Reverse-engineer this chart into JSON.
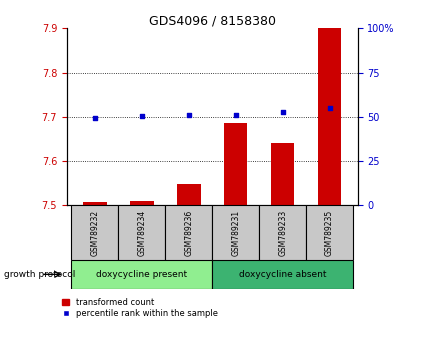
{
  "title": "GDS4096 / 8158380",
  "samples": [
    "GSM789232",
    "GSM789234",
    "GSM789236",
    "GSM789231",
    "GSM789233",
    "GSM789235"
  ],
  "red_values": [
    7.508,
    7.509,
    7.548,
    7.685,
    7.64,
    7.9
  ],
  "blue_values": [
    49.5,
    50.2,
    51.0,
    51.0,
    53.0,
    55.0
  ],
  "ylim_left": [
    7.5,
    7.9
  ],
  "ylim_right": [
    0,
    100
  ],
  "yticks_left": [
    7.5,
    7.6,
    7.7,
    7.8,
    7.9
  ],
  "yticks_right": [
    0,
    25,
    50,
    75,
    100
  ],
  "ytick_labels_right": [
    "0",
    "25",
    "50",
    "75",
    "100%"
  ],
  "bar_color": "#cc0000",
  "dot_color": "#0000cc",
  "bar_width": 0.5,
  "group1_label": "doxycycline present",
  "group2_label": "doxycycline absent",
  "group1_indices": [
    0,
    1,
    2
  ],
  "group2_indices": [
    3,
    4,
    5
  ],
  "protocol_label": "growth protocol",
  "legend_red": "transformed count",
  "legend_blue": "percentile rank within the sample",
  "group1_bg": "#90EE90",
  "group2_bg": "#3CB371",
  "sample_box_bg": "#c8c8c8",
  "title_color": "#000000",
  "left_tick_color": "#cc0000",
  "right_tick_color": "#0000cc",
  "grid_yticks": [
    7.6,
    7.7,
    7.8
  ]
}
